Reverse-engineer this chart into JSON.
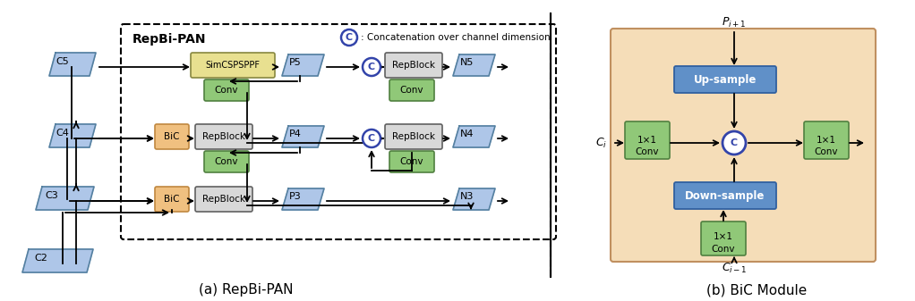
{
  "title_a": "(a) RepBi-PAN",
  "title_b": "(b) BiC Module",
  "repbipan_label": "RepBi-PAN",
  "concat_label": ": Concatenation over channel dimension",
  "bg_color": "#ffffff",
  "blue_block_color": "#aec6e8",
  "blue_block_edge": "#5580a0",
  "orange_block_color": "#f0c080",
  "orange_block_edge": "#c08840",
  "green_block_color": "#90c878",
  "green_block_edge": "#508040",
  "yellow_block_color": "#e8e090",
  "yellow_block_edge": "#a0a040",
  "gray_block_color": "#d8d8d8",
  "gray_block_edge": "#808080",
  "bic_bg_color": "#f5ddb8",
  "blue_rect_color": "#6090c8",
  "blue_rect_edge": "#3060a0"
}
